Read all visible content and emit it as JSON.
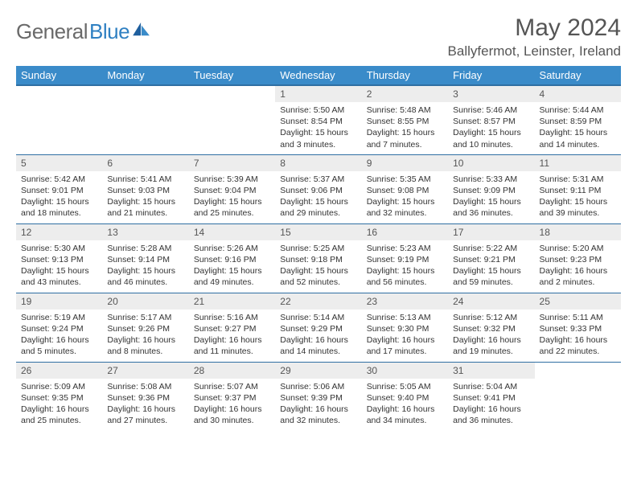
{
  "logo": {
    "word1": "General",
    "word2": "Blue"
  },
  "title": "May 2024",
  "location": "Ballyfermot, Leinster, Ireland",
  "weekdays": [
    "Sunday",
    "Monday",
    "Tuesday",
    "Wednesday",
    "Thursday",
    "Friday",
    "Saturday"
  ],
  "colors": {
    "header_bg": "#3a8bc9",
    "border": "#2f6fa3",
    "daynum_bg": "#ededed",
    "text": "#555555"
  },
  "weeks": [
    [
      {
        "empty": true
      },
      {
        "empty": true
      },
      {
        "empty": true
      },
      {
        "num": "1",
        "sunrise": "Sunrise: 5:50 AM",
        "sunset": "Sunset: 8:54 PM",
        "daylight": "Daylight: 15 hours and 3 minutes."
      },
      {
        "num": "2",
        "sunrise": "Sunrise: 5:48 AM",
        "sunset": "Sunset: 8:55 PM",
        "daylight": "Daylight: 15 hours and 7 minutes."
      },
      {
        "num": "3",
        "sunrise": "Sunrise: 5:46 AM",
        "sunset": "Sunset: 8:57 PM",
        "daylight": "Daylight: 15 hours and 10 minutes."
      },
      {
        "num": "4",
        "sunrise": "Sunrise: 5:44 AM",
        "sunset": "Sunset: 8:59 PM",
        "daylight": "Daylight: 15 hours and 14 minutes."
      }
    ],
    [
      {
        "num": "5",
        "sunrise": "Sunrise: 5:42 AM",
        "sunset": "Sunset: 9:01 PM",
        "daylight": "Daylight: 15 hours and 18 minutes."
      },
      {
        "num": "6",
        "sunrise": "Sunrise: 5:41 AM",
        "sunset": "Sunset: 9:03 PM",
        "daylight": "Daylight: 15 hours and 21 minutes."
      },
      {
        "num": "7",
        "sunrise": "Sunrise: 5:39 AM",
        "sunset": "Sunset: 9:04 PM",
        "daylight": "Daylight: 15 hours and 25 minutes."
      },
      {
        "num": "8",
        "sunrise": "Sunrise: 5:37 AM",
        "sunset": "Sunset: 9:06 PM",
        "daylight": "Daylight: 15 hours and 29 minutes."
      },
      {
        "num": "9",
        "sunrise": "Sunrise: 5:35 AM",
        "sunset": "Sunset: 9:08 PM",
        "daylight": "Daylight: 15 hours and 32 minutes."
      },
      {
        "num": "10",
        "sunrise": "Sunrise: 5:33 AM",
        "sunset": "Sunset: 9:09 PM",
        "daylight": "Daylight: 15 hours and 36 minutes."
      },
      {
        "num": "11",
        "sunrise": "Sunrise: 5:31 AM",
        "sunset": "Sunset: 9:11 PM",
        "daylight": "Daylight: 15 hours and 39 minutes."
      }
    ],
    [
      {
        "num": "12",
        "sunrise": "Sunrise: 5:30 AM",
        "sunset": "Sunset: 9:13 PM",
        "daylight": "Daylight: 15 hours and 43 minutes."
      },
      {
        "num": "13",
        "sunrise": "Sunrise: 5:28 AM",
        "sunset": "Sunset: 9:14 PM",
        "daylight": "Daylight: 15 hours and 46 minutes."
      },
      {
        "num": "14",
        "sunrise": "Sunrise: 5:26 AM",
        "sunset": "Sunset: 9:16 PM",
        "daylight": "Daylight: 15 hours and 49 minutes."
      },
      {
        "num": "15",
        "sunrise": "Sunrise: 5:25 AM",
        "sunset": "Sunset: 9:18 PM",
        "daylight": "Daylight: 15 hours and 52 minutes."
      },
      {
        "num": "16",
        "sunrise": "Sunrise: 5:23 AM",
        "sunset": "Sunset: 9:19 PM",
        "daylight": "Daylight: 15 hours and 56 minutes."
      },
      {
        "num": "17",
        "sunrise": "Sunrise: 5:22 AM",
        "sunset": "Sunset: 9:21 PM",
        "daylight": "Daylight: 15 hours and 59 minutes."
      },
      {
        "num": "18",
        "sunrise": "Sunrise: 5:20 AM",
        "sunset": "Sunset: 9:23 PM",
        "daylight": "Daylight: 16 hours and 2 minutes."
      }
    ],
    [
      {
        "num": "19",
        "sunrise": "Sunrise: 5:19 AM",
        "sunset": "Sunset: 9:24 PM",
        "daylight": "Daylight: 16 hours and 5 minutes."
      },
      {
        "num": "20",
        "sunrise": "Sunrise: 5:17 AM",
        "sunset": "Sunset: 9:26 PM",
        "daylight": "Daylight: 16 hours and 8 minutes."
      },
      {
        "num": "21",
        "sunrise": "Sunrise: 5:16 AM",
        "sunset": "Sunset: 9:27 PM",
        "daylight": "Daylight: 16 hours and 11 minutes."
      },
      {
        "num": "22",
        "sunrise": "Sunrise: 5:14 AM",
        "sunset": "Sunset: 9:29 PM",
        "daylight": "Daylight: 16 hours and 14 minutes."
      },
      {
        "num": "23",
        "sunrise": "Sunrise: 5:13 AM",
        "sunset": "Sunset: 9:30 PM",
        "daylight": "Daylight: 16 hours and 17 minutes."
      },
      {
        "num": "24",
        "sunrise": "Sunrise: 5:12 AM",
        "sunset": "Sunset: 9:32 PM",
        "daylight": "Daylight: 16 hours and 19 minutes."
      },
      {
        "num": "25",
        "sunrise": "Sunrise: 5:11 AM",
        "sunset": "Sunset: 9:33 PM",
        "daylight": "Daylight: 16 hours and 22 minutes."
      }
    ],
    [
      {
        "num": "26",
        "sunrise": "Sunrise: 5:09 AM",
        "sunset": "Sunset: 9:35 PM",
        "daylight": "Daylight: 16 hours and 25 minutes."
      },
      {
        "num": "27",
        "sunrise": "Sunrise: 5:08 AM",
        "sunset": "Sunset: 9:36 PM",
        "daylight": "Daylight: 16 hours and 27 minutes."
      },
      {
        "num": "28",
        "sunrise": "Sunrise: 5:07 AM",
        "sunset": "Sunset: 9:37 PM",
        "daylight": "Daylight: 16 hours and 30 minutes."
      },
      {
        "num": "29",
        "sunrise": "Sunrise: 5:06 AM",
        "sunset": "Sunset: 9:39 PM",
        "daylight": "Daylight: 16 hours and 32 minutes."
      },
      {
        "num": "30",
        "sunrise": "Sunrise: 5:05 AM",
        "sunset": "Sunset: 9:40 PM",
        "daylight": "Daylight: 16 hours and 34 minutes."
      },
      {
        "num": "31",
        "sunrise": "Sunrise: 5:04 AM",
        "sunset": "Sunset: 9:41 PM",
        "daylight": "Daylight: 16 hours and 36 minutes."
      },
      {
        "empty": true
      }
    ]
  ]
}
